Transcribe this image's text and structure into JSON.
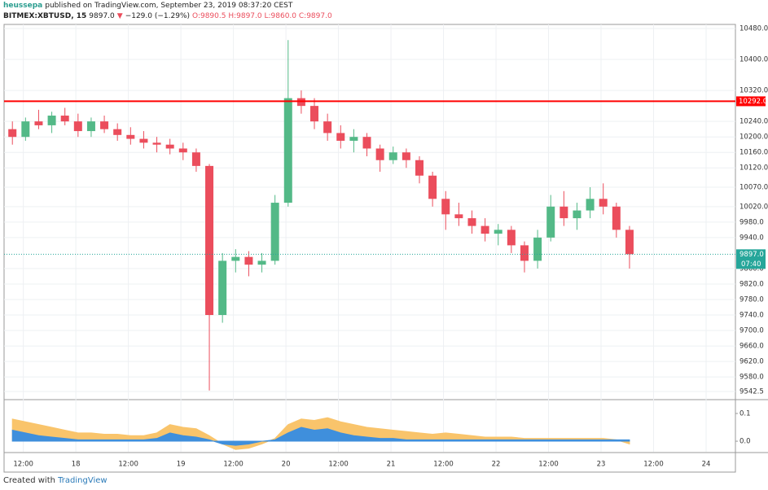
{
  "header": {
    "user": "heussepa",
    "published": "published on TradingView.com, September 23, 2019 08:37:20 CEST",
    "symbol": "BITMEX:XBTUSD, 15",
    "price": "9897.0",
    "arrow": "▼",
    "change": "−129.0 (−1.29%)",
    "ohlc": "O:9890.5 H:9897.0 L:9860.0 C:9897.0"
  },
  "footer": {
    "created": "Created with",
    "brand": "TradingView"
  },
  "chart_data": {
    "type": "candlestick",
    "up_color": "#53b987",
    "down_color": "#eb4d5c",
    "x": [
      8,
      11,
      14,
      17,
      20,
      23,
      26,
      29,
      32,
      35,
      38,
      41,
      44,
      47,
      50,
      53,
      56,
      59,
      62,
      65,
      68,
      71,
      74,
      77,
      80,
      83,
      86,
      89,
      92,
      95,
      98,
      101,
      104,
      107,
      110,
      113,
      116,
      119,
      122,
      125,
      128,
      131,
      134,
      137,
      140,
      143,
      146,
      149
    ],
    "open": [
      10220,
      10200,
      10240,
      10230,
      10255,
      10240,
      10215,
      10240,
      10220,
      10205,
      10195,
      10185,
      10180,
      10170,
      10160,
      10125,
      9740,
      9880,
      9890,
      9870,
      9880,
      10030,
      10300,
      10280,
      10240,
      10210,
      10190,
      10200,
      10170,
      10140,
      10160,
      10140,
      10100,
      10040,
      10000,
      9990,
      9970,
      9950,
      9960,
      9920,
      9880,
      9940,
      10020,
      9990,
      10010,
      10040,
      10020,
      9960
    ],
    "high": [
      10240,
      10250,
      10270,
      10265,
      10275,
      10260,
      10250,
      10255,
      10235,
      10225,
      10215,
      10200,
      10195,
      10185,
      10170,
      10130,
      9900,
      9910,
      9905,
      9900,
      10050,
      10450,
      10320,
      10300,
      10260,
      10230,
      10220,
      10210,
      10180,
      10175,
      10170,
      10150,
      10110,
      10060,
      10030,
      10010,
      9990,
      9975,
      9970,
      9930,
      9960,
      10050,
      10060,
      10030,
      10070,
      10080,
      10030,
      9970
    ],
    "low": [
      10180,
      10190,
      10220,
      10210,
      10230,
      10200,
      10200,
      10210,
      10190,
      10180,
      10170,
      10160,
      10155,
      10140,
      10110,
      9545,
      9720,
      9850,
      9840,
      9850,
      9870,
      10020,
      10260,
      10220,
      10190,
      10170,
      10160,
      10150,
      10110,
      10130,
      10120,
      10080,
      10020,
      9960,
      9970,
      9950,
      9930,
      9920,
      9900,
      9850,
      9860,
      9930,
      9970,
      9960,
      9990,
      10000,
      9940,
      9860
    ],
    "close": [
      10200,
      10240,
      10230,
      10255,
      10240,
      10215,
      10240,
      10220,
      10205,
      10195,
      10185,
      10180,
      10170,
      10160,
      10125,
      9740,
      9880,
      9890,
      9870,
      9880,
      10030,
      10300,
      10280,
      10240,
      10210,
      10190,
      10200,
      10170,
      10140,
      10160,
      10140,
      10100,
      10040,
      10000,
      9990,
      9970,
      9950,
      9960,
      9920,
      9880,
      9940,
      10020,
      9990,
      10010,
      10040,
      10020,
      9960,
      9897
    ],
    "xlim": [
      7.6,
      174.7
    ],
    "xticks": [
      {
        "value": 12,
        "label": "12:00"
      },
      {
        "value": 24,
        "label": "18"
      },
      {
        "value": 36,
        "label": "12:00"
      },
      {
        "value": 48,
        "label": "19"
      },
      {
        "value": 60,
        "label": "12:00"
      },
      {
        "value": 72,
        "label": "20"
      },
      {
        "value": 84,
        "label": "12:00"
      },
      {
        "value": 96,
        "label": "21"
      },
      {
        "value": 108,
        "label": "12:00"
      },
      {
        "value": 120,
        "label": "22"
      },
      {
        "value": 132,
        "label": "12:00"
      },
      {
        "value": 144,
        "label": "23"
      },
      {
        "value": 156,
        "label": "12:00"
      },
      {
        "value": 168,
        "label": "24"
      }
    ],
    "ylim": [
      9523.5,
      10490.5
    ],
    "yticks": [
      {
        "value": 10480,
        "label": "10480.0"
      },
      {
        "value": 10400,
        "label": "10400.0"
      },
      {
        "value": 10320,
        "label": "10320.0"
      },
      {
        "value": 10240,
        "label": "10240.0"
      },
      {
        "value": 10200,
        "label": "10200.0"
      },
      {
        "value": 10160,
        "label": "10160.0"
      },
      {
        "value": 10120,
        "label": "10120.0"
      },
      {
        "value": 10070,
        "label": "10070.0"
      },
      {
        "value": 10020,
        "label": "10020.0"
      },
      {
        "value": 9980,
        "label": "9980.0"
      },
      {
        "value": 9940,
        "label": "9940.0"
      },
      {
        "value": 9860,
        "label": "9860.0"
      },
      {
        "value": 9820,
        "label": "9820.0"
      },
      {
        "value": 9780,
        "label": "9780.0"
      },
      {
        "value": 9740,
        "label": "9740.0"
      },
      {
        "value": 9700,
        "label": "9700.0"
      },
      {
        "value": 9660,
        "label": "9660.0"
      },
      {
        "value": 9620,
        "label": "9620.0"
      },
      {
        "value": 9580,
        "label": "9580.0"
      },
      {
        "value": 9542.5,
        "label": "9542.5"
      }
    ],
    "grid": true,
    "hline": {
      "value": 10292,
      "label": "10292.0",
      "color": "#ff0000"
    },
    "last": {
      "value": 9897,
      "label": "9897.0",
      "countdown": "07:40",
      "color": "#26a69a"
    },
    "indicator": {
      "type": "area",
      "ylim": [
        -0.038,
        0.147
      ],
      "yticks": [
        {
          "value": 0.1,
          "label": "0.1"
        },
        {
          "value": 0,
          "label": "0.0"
        }
      ],
      "series": [
        {
          "color": "#f9c46b",
          "values": [
            0.08,
            0.07,
            0.06,
            0.05,
            0.04,
            0.03,
            0.03,
            0.025,
            0.025,
            0.02,
            0.02,
            0.03,
            0.06,
            0.05,
            0.045,
            0.02,
            -0.01,
            -0.03,
            -0.025,
            -0.01,
            0.01,
            0.06,
            0.08,
            0.075,
            0.085,
            0.07,
            0.06,
            0.05,
            0.045,
            0.04,
            0.035,
            0.03,
            0.025,
            0.03,
            0.025,
            0.02,
            0.015,
            0.015,
            0.015,
            0.01,
            0.01,
            0.01,
            0.01,
            0.01,
            0.01,
            0.01,
            0.005,
            -0.01
          ]
        },
        {
          "color": "#3f8fdc",
          "values": [
            0.04,
            0.03,
            0.02,
            0.015,
            0.01,
            0.005,
            0.005,
            0.005,
            0.005,
            0.005,
            0.005,
            0.01,
            0.03,
            0.02,
            0.015,
            0.005,
            -0.01,
            -0.015,
            -0.01,
            0,
            0.005,
            0.03,
            0.05,
            0.04,
            0.045,
            0.03,
            0.02,
            0.015,
            0.01,
            0.01,
            0.005,
            0.005,
            0.005,
            0.005,
            0.005,
            0.005,
            0.005,
            0.005,
            0.005,
            0.005,
            0.005,
            0.005,
            0.005,
            0.005,
            0.005,
            0.005,
            0.005,
            0.005
          ]
        }
      ]
    }
  }
}
